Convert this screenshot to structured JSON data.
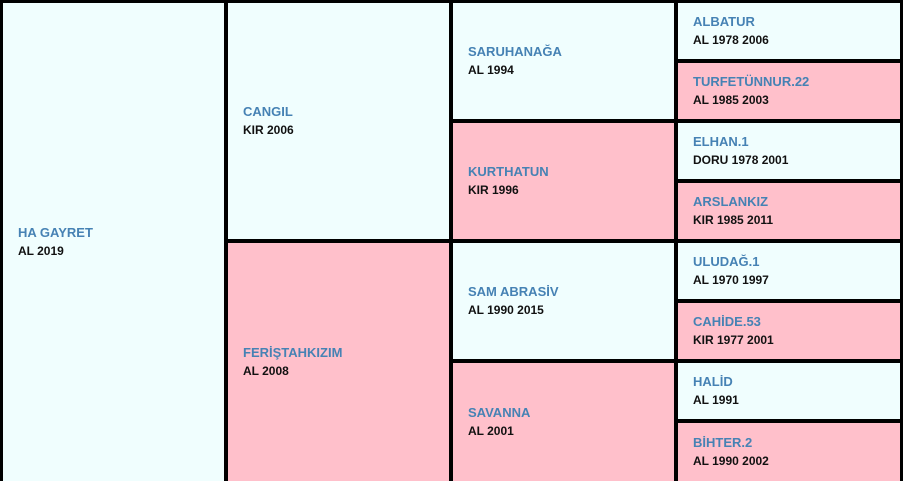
{
  "subject": {
    "name": "HA GAYRET",
    "info": "AL 2019"
  },
  "sire": {
    "name": "CANGIL",
    "info": "KIR 2006"
  },
  "dam": {
    "name": "FERİŞTAHKIZIM",
    "info": "AL 2008"
  },
  "sire_sire": {
    "name": "SARUHANAĞA",
    "info": "AL 1994"
  },
  "sire_dam": {
    "name": "KURTHATUN",
    "info": "KIR 1996"
  },
  "dam_sire": {
    "name": "SAM ABRASİV",
    "info": "AL 1990 2015"
  },
  "dam_dam": {
    "name": "SAVANNA",
    "info": "AL 2001"
  },
  "gen3": [
    {
      "name": "ALBATUR",
      "info": "AL 1978 2006"
    },
    {
      "name": "TURFETÜNNUR.22",
      "info": "AL 1985 2003"
    },
    {
      "name": "ELHAN.1",
      "info": "DORU 1978 2001"
    },
    {
      "name": "ARSLANKIZ",
      "info": "KIR 1985 2011"
    },
    {
      "name": "ULUDAĞ.1",
      "info": "AL 1970 1997"
    },
    {
      "name": "CAHİDE.53",
      "info": "KIR 1977 2001"
    },
    {
      "name": "HALİD",
      "info": "AL 1991"
    },
    {
      "name": "BİHTER.2",
      "info": "AL 1990 2002"
    }
  ],
  "colors": {
    "male_bg": "#f0fefe",
    "female_bg": "#ffc0cb",
    "name_text": "#4682b4",
    "info_text": "#111111",
    "border": "#000000"
  }
}
